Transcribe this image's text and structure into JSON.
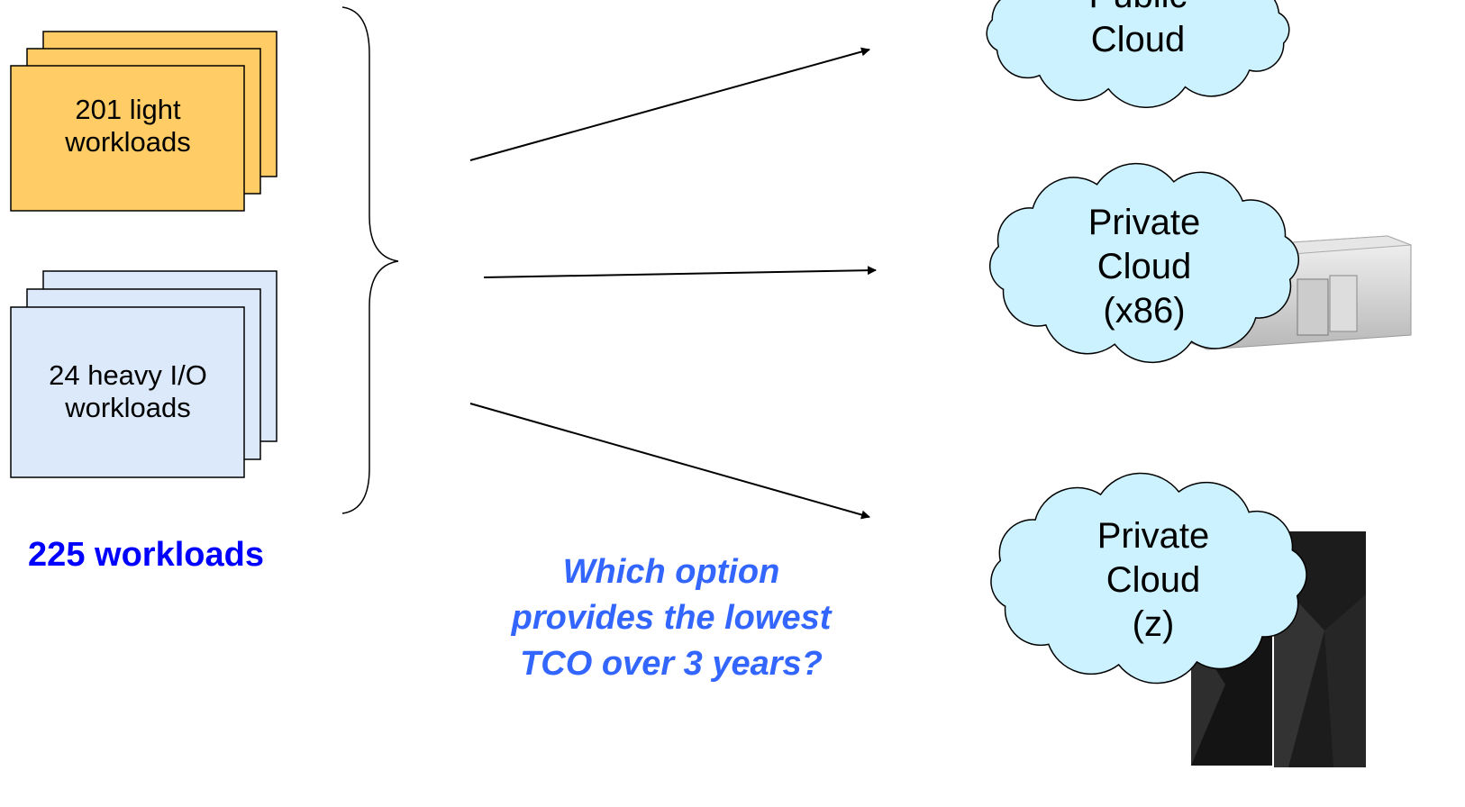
{
  "groups": [
    {
      "label_lines": [
        "201 light",
        "workloads"
      ]
    },
    {
      "label_lines": [
        "24 heavy I/O",
        "workloads"
      ]
    }
  ],
  "total": "225 workloads",
  "question_lines": [
    "Which option",
    "provides the lowest",
    "TCO over 3 years?"
  ],
  "clouds": [
    {
      "lines": [
        "Public",
        "Cloud"
      ]
    },
    {
      "lines": [
        "Private",
        "Cloud",
        "(x86)"
      ]
    },
    {
      "lines": [
        "Private",
        "Cloud",
        "(z)"
      ]
    }
  ]
}
